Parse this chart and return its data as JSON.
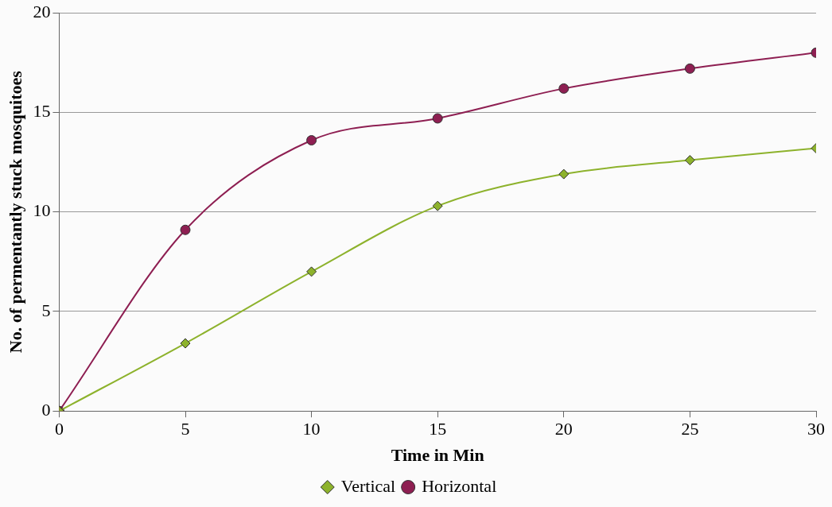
{
  "chart_data": {
    "type": "line",
    "xlabel": "Time in Min",
    "ylabel": "No. of permentantly stuck mosquitoes",
    "x": [
      0,
      5,
      10,
      15,
      20,
      25,
      30
    ],
    "series": [
      {
        "name": "Vertical",
        "color": "#8db22c",
        "marker": "diamond",
        "values": [
          0,
          3.4,
          7,
          10.3,
          11.9,
          12.6,
          13.2
        ]
      },
      {
        "name": "Horizontal",
        "color": "#8e1f52",
        "marker": "circle",
        "values": [
          0,
          9.1,
          13.6,
          14.7,
          16.2,
          17.2,
          18
        ]
      }
    ],
    "xlim": [
      0,
      30
    ],
    "xticks": [
      0,
      5,
      10,
      15,
      20,
      25,
      30
    ],
    "ylim": [
      0,
      20
    ],
    "yticks": [
      0,
      5,
      10,
      15,
      20
    ],
    "grid": "y",
    "legend": "bottom"
  }
}
